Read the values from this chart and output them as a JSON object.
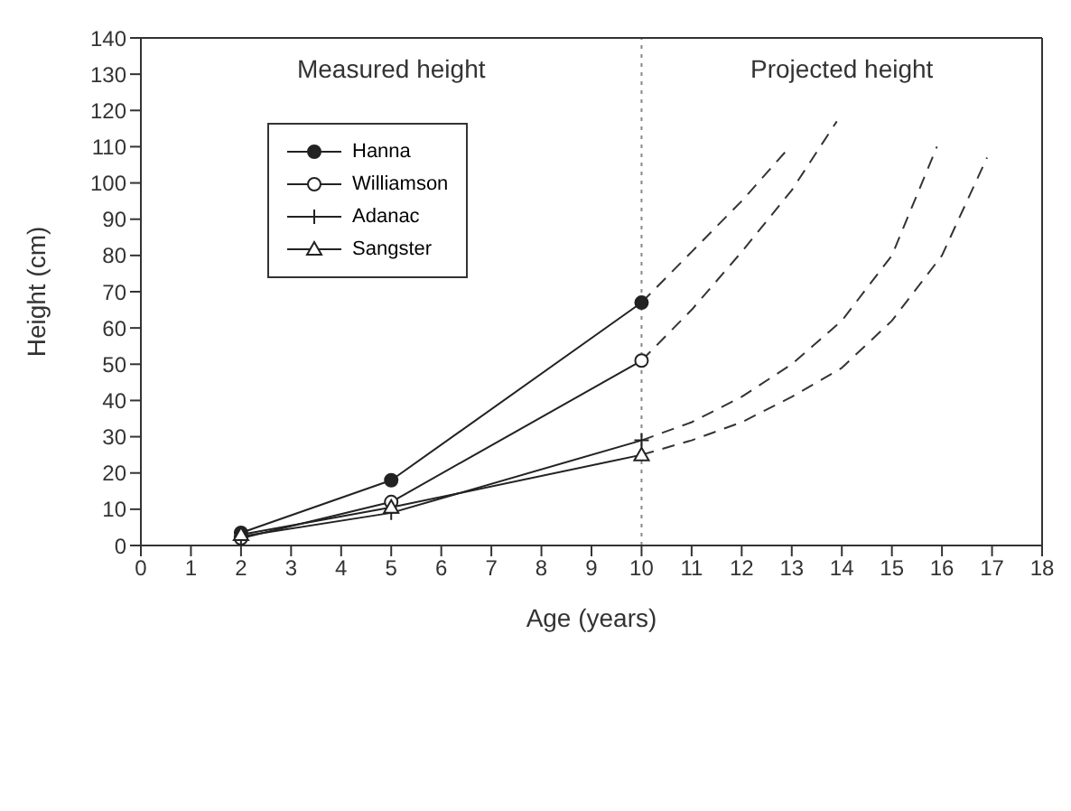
{
  "chart_data": {
    "type": "line",
    "xlabel": "Age (years)",
    "ylabel": "Height (cm)",
    "xlim": [
      0,
      18
    ],
    "xticks": [
      0,
      1,
      2,
      3,
      4,
      5,
      6,
      7,
      8,
      9,
      10,
      11,
      12,
      13,
      14,
      15,
      16,
      17,
      18
    ],
    "ylim": [
      0,
      140
    ],
    "yticks": [
      0,
      10,
      20,
      30,
      40,
      50,
      60,
      70,
      80,
      90,
      100,
      110,
      120,
      130,
      140
    ],
    "grid": false,
    "legend": "top left",
    "series": [
      {
        "name": "Hanna",
        "color": "#222222",
        "marker": "circle",
        "line_style": "solid",
        "x": [
          2,
          5,
          10
        ],
        "values": [
          3.5,
          18,
          67
        ]
      },
      {
        "name": "Williamson",
        "color": "#222222",
        "marker": "circle-open",
        "line_style": "solid",
        "x": [
          2,
          5,
          10
        ],
        "values": [
          2,
          12,
          51
        ]
      },
      {
        "name": "Adanac",
        "color": "#222222",
        "marker": "cross",
        "line_style": "solid",
        "x": [
          2,
          5,
          10
        ],
        "values": [
          2.5,
          9,
          29
        ]
      },
      {
        "name": "Sangster",
        "color": "#222222",
        "marker": "triangle",
        "line_style": "solid",
        "x": [
          2,
          5,
          10
        ],
        "values": [
          3,
          10.5,
          25
        ]
      },
      {
        "color": "#333333",
        "marker": "none",
        "line_style": "dashed",
        "x": [
          10,
          11,
          12,
          12.9
        ],
        "values": [
          67,
          81,
          95,
          109
        ]
      },
      {
        "color": "#333333",
        "marker": "none",
        "line_style": "dashed",
        "x": [
          10,
          11,
          12,
          13,
          13.9
        ],
        "values": [
          51,
          65,
          81,
          98,
          117
        ]
      },
      {
        "color": "#333333",
        "marker": "none",
        "line_style": "dashed",
        "x": [
          10,
          11,
          12,
          13,
          14,
          15,
          15.9
        ],
        "values": [
          29,
          34,
          41,
          50,
          62,
          80,
          110
        ]
      },
      {
        "color": "#333333",
        "marker": "none",
        "line_style": "dashed",
        "x": [
          10,
          11,
          12,
          13,
          14,
          15,
          16,
          16.9
        ],
        "values": [
          25,
          29,
          34,
          41,
          49,
          62,
          80,
          107
        ]
      }
    ],
    "ref_lines": [
      {
        "axis": "x",
        "value": 10,
        "color": "#888888",
        "line_style": "dotted"
      }
    ],
    "annotations": [
      "Measured height",
      "Projected height"
    ]
  }
}
